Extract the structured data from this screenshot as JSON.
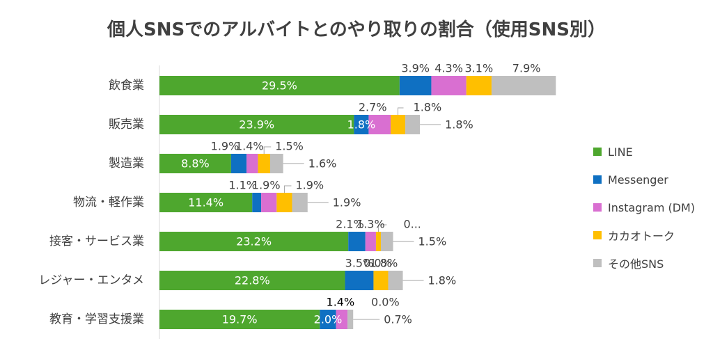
{
  "chart_data": {
    "type": "bar",
    "orientation": "horizontal",
    "stacked": true,
    "title": "個人SNSでのアルバイトとのやり取りの割合（使用SNS別）",
    "categories": [
      "飲食業",
      "販売業",
      "製造業",
      "物流・軽作業",
      "接客・サービス業",
      "レジャー・エンタメ",
      "教育・学習支援業"
    ],
    "series": [
      {
        "name": "LINE",
        "color": "#4ea72e",
        "values": [
          29.5,
          23.9,
          8.8,
          11.4,
          23.2,
          22.8,
          19.7
        ],
        "labels": [
          "29.5%",
          "23.9%",
          "8.8%",
          "11.4%",
          "23.2%",
          "22.8%",
          "19.7%"
        ]
      },
      {
        "name": "Messenger",
        "color": "#0f70c2",
        "values": [
          3.9,
          1.8,
          1.9,
          1.1,
          2.1,
          3.5,
          2.0
        ],
        "labels": [
          "3.9%",
          "1.8%",
          "1.9%",
          "1.1%",
          "2.1%",
          "3.5%",
          "2.0%"
        ]
      },
      {
        "name": "Instagram (DM)",
        "color": "#d96fd1",
        "values": [
          4.3,
          2.7,
          1.4,
          1.9,
          1.3,
          0.0,
          1.4
        ],
        "labels": [
          "4.3%",
          "2.7%",
          "1.4%",
          "1.9%",
          "1.3%",
          "0.0%",
          "1.4%"
        ]
      },
      {
        "name": "カカオトーク",
        "color": "#ffbf00",
        "values": [
          3.1,
          1.8,
          1.5,
          1.9,
          0.6,
          1.8,
          0.0
        ],
        "labels": [
          "3.1%",
          "1.8%",
          "1.5%",
          "1.9%",
          "0...",
          "1.8%",
          "0.0%"
        ]
      },
      {
        "name": "その他SNS",
        "color": "#bfbfbf",
        "values": [
          7.9,
          1.8,
          1.6,
          1.9,
          1.5,
          1.8,
          0.7
        ],
        "labels": [
          "7.9%",
          "1.8%",
          "1.6%",
          "1.9%",
          "1.5%",
          "1.8%",
          "0.7%"
        ]
      }
    ],
    "legend_position": "right",
    "grid": false
  }
}
